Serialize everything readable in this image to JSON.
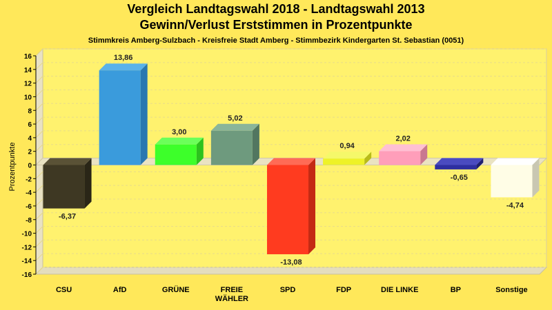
{
  "chart_data": {
    "type": "bar",
    "title": "Vergleich Landtagswahl 2018 - Landtagswahl 2013",
    "title_line2": "Gewinn/Verlust Erststimmen in Prozentpunkte",
    "subtitle": "Stimmkreis Amberg-Sulzbach - Kreisfreie Stadt Amberg - Stimmbezirk Kindergarten St. Sebastian (0051)",
    "xlabel": "",
    "ylabel": "Prozentpunkte",
    "ylim": [
      -16,
      16
    ],
    "ytick_step": 2,
    "grid": true,
    "categories": [
      "CSU",
      "AfD",
      "GRÜNE",
      "FREIE WÄHLER",
      "SPD",
      "FDP",
      "DIE LINKE",
      "BP",
      "Sonstige"
    ],
    "category_lines": [
      [
        "CSU"
      ],
      [
        "AfD"
      ],
      [
        "GRÜNE"
      ],
      [
        "FREIE",
        "WÄHLER"
      ],
      [
        "SPD"
      ],
      [
        "FDP"
      ],
      [
        "DIE LINKE"
      ],
      [
        "BP"
      ],
      [
        "Sonstige"
      ]
    ],
    "values": [
      -6.37,
      13.86,
      3.0,
      5.02,
      -13.08,
      0.94,
      2.02,
      -0.65,
      -4.74
    ],
    "value_labels": [
      "-6,37",
      "13,86",
      "3,00",
      "5,02",
      "-13,08",
      "0,94",
      "2,02",
      "-0,65",
      "-4,74"
    ],
    "colors": [
      "#3E3823",
      "#3A9BDC",
      "#3DFF2A",
      "#6E9A7E",
      "#FF3B1F",
      "#EEF227",
      "#FF9EBA",
      "#2E2FA0",
      "#FFFDE6"
    ],
    "colors_side": [
      "#2A2617",
      "#2A78B0",
      "#2CC21E",
      "#527660",
      "#C42A14",
      "#B8BB1A",
      "#C97890",
      "#1E1F70",
      "#C9C7B2"
    ],
    "colors_top": [
      "#5A5236",
      "#5AB2EA",
      "#6BFF5A",
      "#8AB59A",
      "#FF6B55",
      "#F5F86A",
      "#FFC0D3",
      "#4A4BC0",
      "#FFFFFF"
    ]
  }
}
